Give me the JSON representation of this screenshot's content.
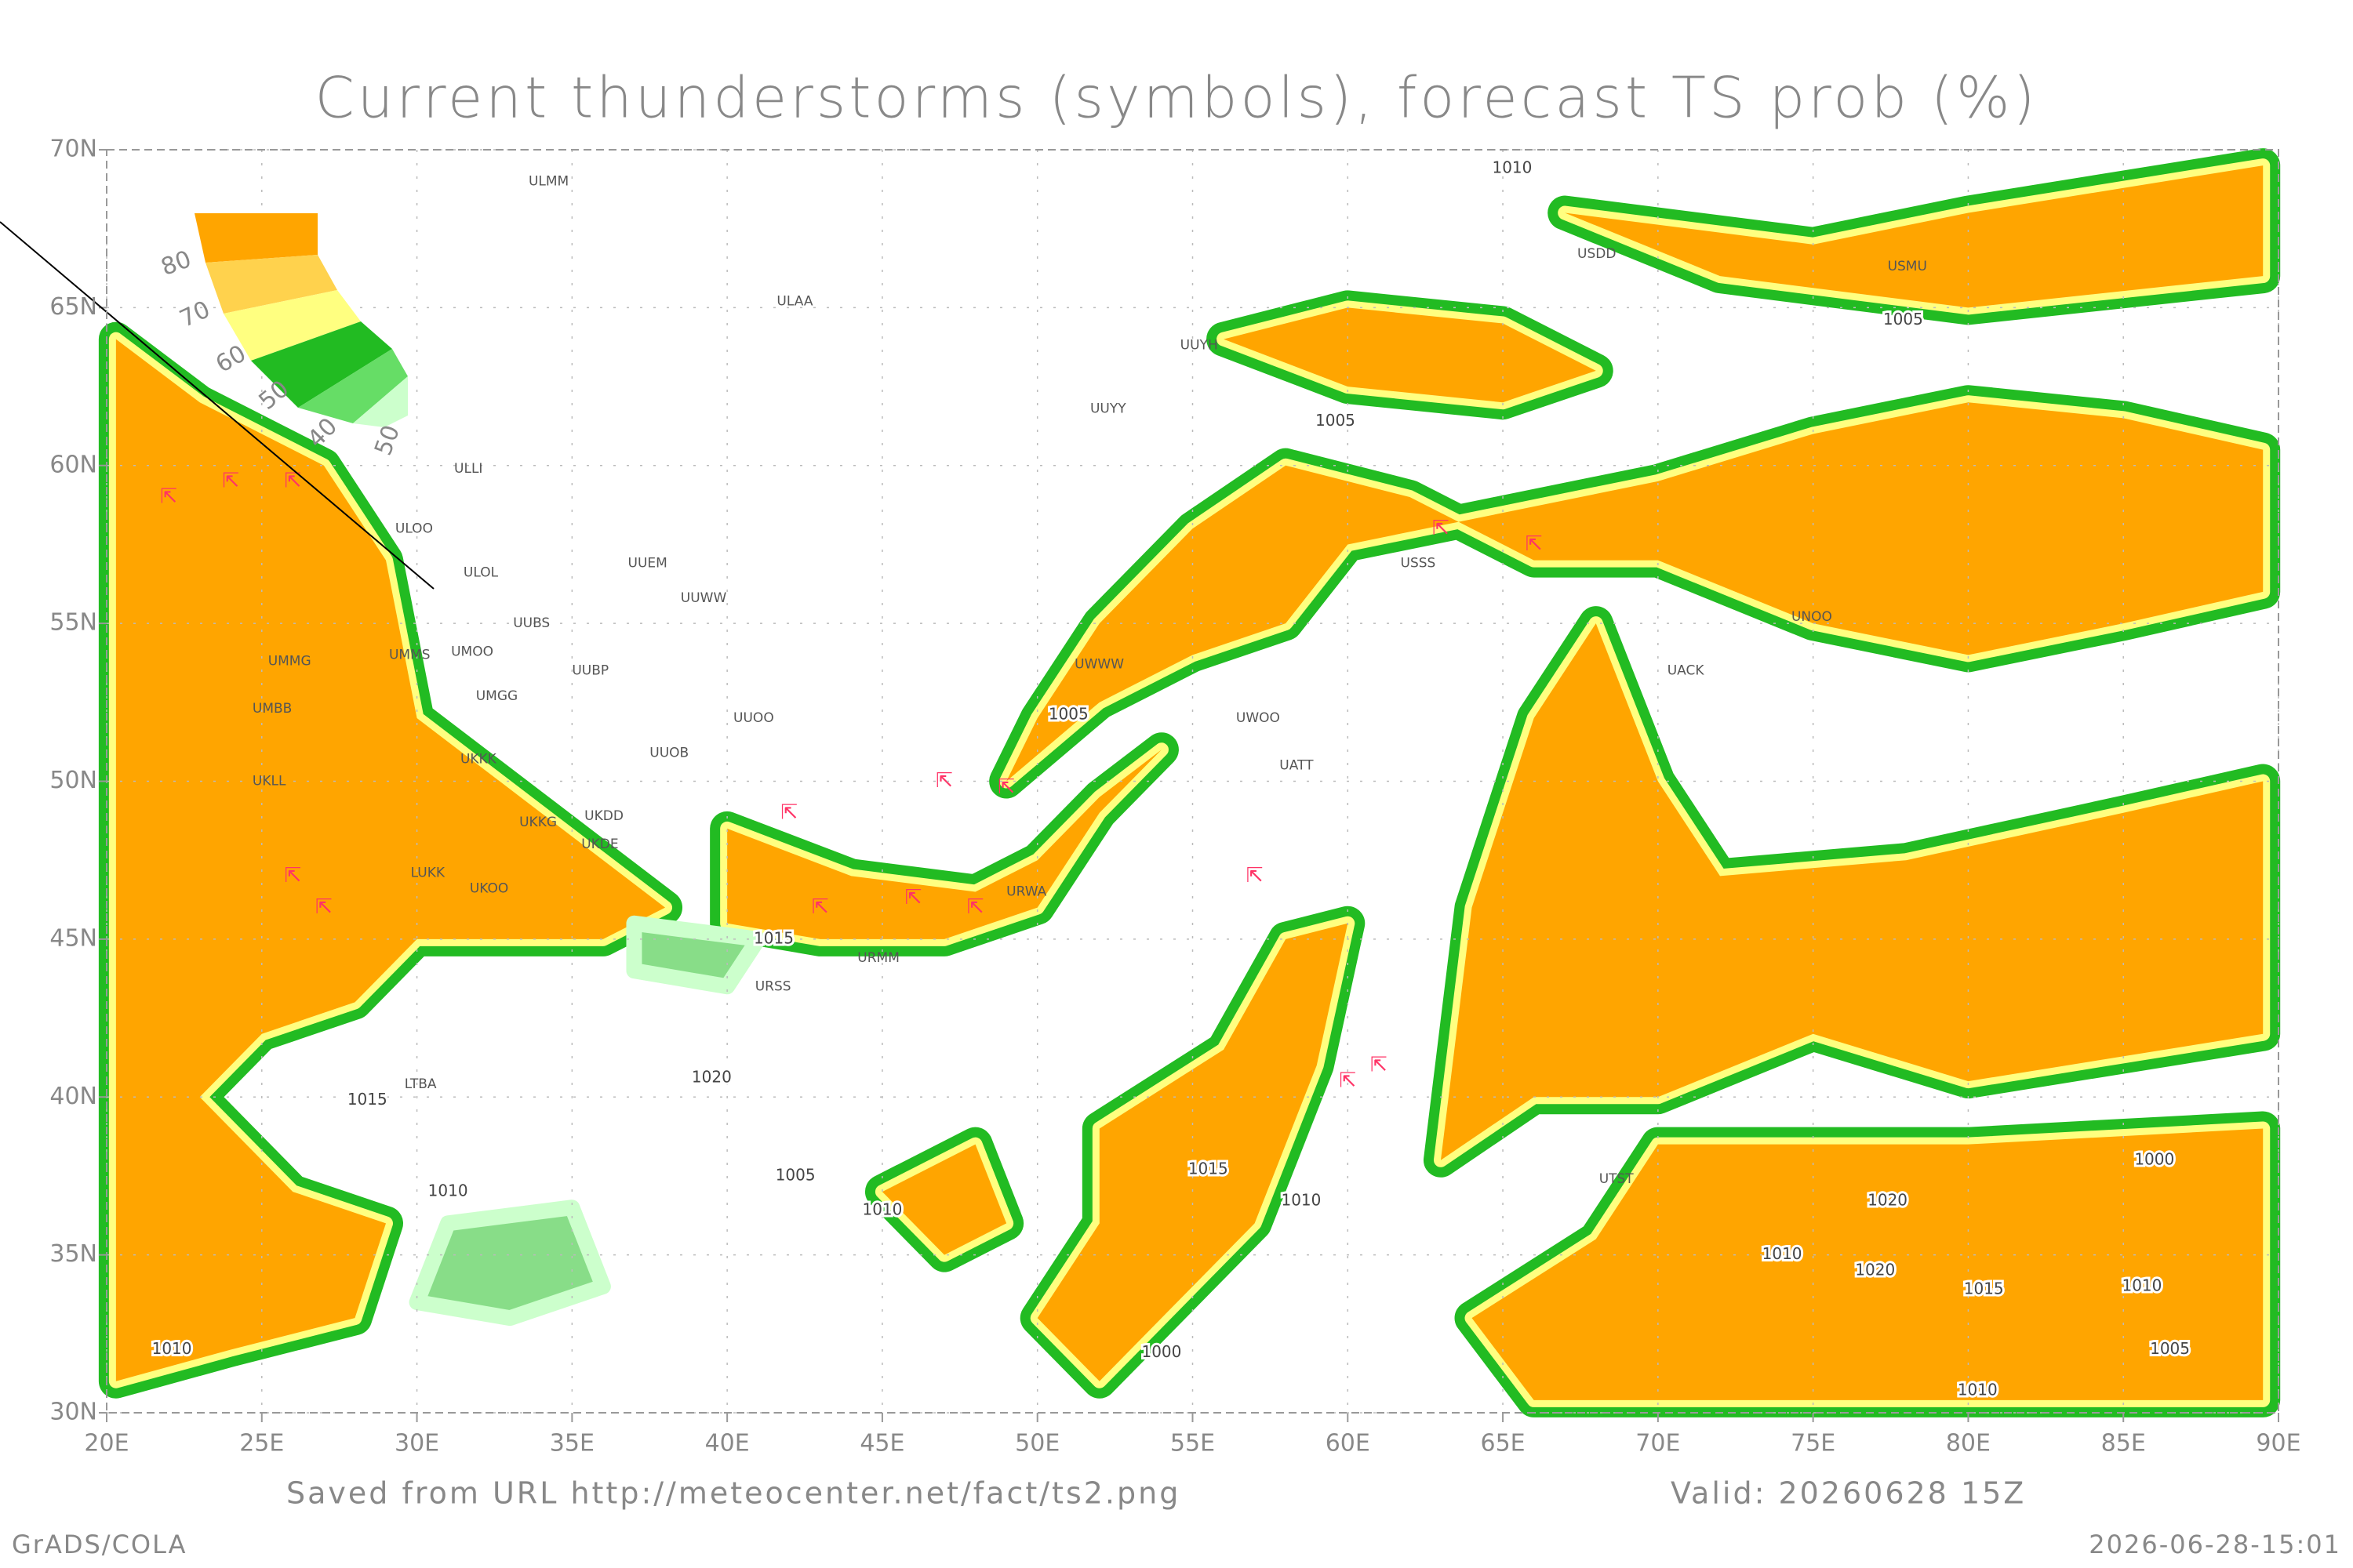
{
  "map": {
    "title": "Current thunderstorms (symbols), forecast TS prob (%)",
    "xlim": [
      20,
      90
    ],
    "ylim": [
      30,
      70
    ],
    "xticks": [
      {
        "value": 20,
        "label": "20E"
      },
      {
        "value": 25,
        "label": "25E"
      },
      {
        "value": 30,
        "label": "30E"
      },
      {
        "value": 35,
        "label": "35E"
      },
      {
        "value": 40,
        "label": "40E"
      },
      {
        "value": 45,
        "label": "45E"
      },
      {
        "value": 50,
        "label": "50E"
      },
      {
        "value": 55,
        "label": "55E"
      },
      {
        "value": 60,
        "label": "60E"
      },
      {
        "value": 65,
        "label": "65E"
      },
      {
        "value": 70,
        "label": "70E"
      },
      {
        "value": 75,
        "label": "75E"
      },
      {
        "value": 80,
        "label": "80E"
      },
      {
        "value": 85,
        "label": "85E"
      },
      {
        "value": 90,
        "label": "90E"
      }
    ],
    "yticks": [
      {
        "value": 30,
        "label": "30N"
      },
      {
        "value": 35,
        "label": "35N"
      },
      {
        "value": 40,
        "label": "40N"
      },
      {
        "value": 45,
        "label": "45N"
      },
      {
        "value": 50,
        "label": "50N"
      },
      {
        "value": 55,
        "label": "55N"
      },
      {
        "value": 60,
        "label": "60N"
      },
      {
        "value": 65,
        "label": "65N"
      },
      {
        "value": 70,
        "label": "70N"
      }
    ],
    "grid": true,
    "legend_labels": [
      "80",
      "70",
      "60",
      "50",
      "40",
      "50"
    ],
    "stations": [
      "ULMM",
      "ULAA",
      "ULLI",
      "ULOO",
      "ULOL",
      "UUEM",
      "UUWW",
      "UUBS",
      "UMMS",
      "UMOO",
      "UUBP",
      "UMGG",
      "UMMG",
      "UMBB",
      "UKKK",
      "UUOB",
      "UUOO",
      "UKLL",
      "UKKG",
      "UKDD",
      "UKDE",
      "UKOO",
      "LUKK",
      "URSS",
      "URMM",
      "URWA",
      "UWWW",
      "UWOO",
      "UATT",
      "UACK",
      "UNOO",
      "USSS",
      "USDD",
      "USMU",
      "UUYY",
      "UUYH",
      "LTBA",
      "UTST"
    ],
    "isobar_labels": [
      "1010",
      "1005",
      "1005",
      "1005",
      "1015",
      "1020",
      "1015",
      "1010",
      "1005",
      "1010",
      "1015",
      "1010",
      "1000",
      "1020",
      "1010",
      "1020",
      "1010",
      "1005",
      "1000",
      "1010",
      "1010",
      "1015"
    ]
  },
  "footer": {
    "source": "Saved from URL http://meteocenter.net/fact/ts2.png",
    "valid": "Valid: 20260628 15Z",
    "brand": "GrADS/COLA",
    "timestamp": "2026-06-28-15:01"
  }
}
